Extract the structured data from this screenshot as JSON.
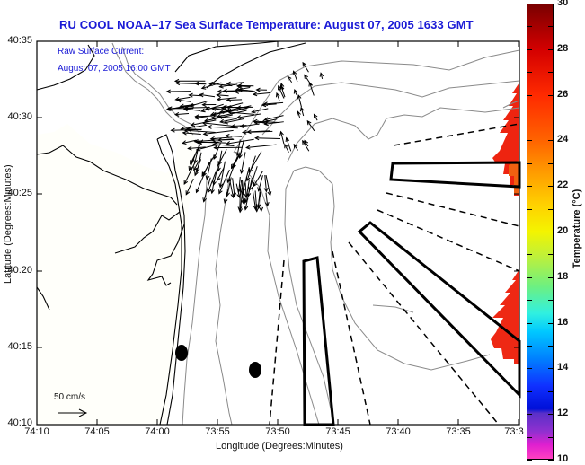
{
  "title": "RU COOL  NOAA–17  Sea Surface Temperature:  August 07, 2005 1633 GMT",
  "overlay": {
    "line1": "Raw Surface Current:",
    "line2": "August 07, 2005 16:00 GMT"
  },
  "scale_vector": {
    "label": "50 cm/s",
    "icon": "arrow-right-icon"
  },
  "axes": {
    "xlabel": "Longitude (Degrees:Minutes)",
    "ylabel": "Latitude (Degrees:Minutes)",
    "xticks": [
      "74:10",
      "74:05",
      "74:00",
      "73:55",
      "73:50",
      "73:45",
      "73:40",
      "73:35",
      "73:3"
    ],
    "yticks": [
      "40:35",
      "40:30",
      "40:25",
      "40:20",
      "40:15",
      "40:10"
    ]
  },
  "colorbar": {
    "label": "Temperature (°C)",
    "ticks": [
      "30",
      "28",
      "26",
      "24",
      "22",
      "20",
      "18",
      "16",
      "14",
      "12",
      "10"
    ],
    "range": [
      10,
      30
    ]
  },
  "features": {
    "markers": [
      {
        "name": "station-marker-1",
        "lon": "73:58.9",
        "lat": "40:14.6"
      },
      {
        "name": "station-marker-2",
        "lon": "73:52.3",
        "lat": "40:13.4"
      }
    ],
    "sst_patches": [
      {
        "region": "north-east edge",
        "temp_c": 26.5,
        "color": "#f02a10"
      },
      {
        "region": "south-east edge",
        "temp_c": 27,
        "color": "#f02810"
      }
    ]
  },
  "colors": {
    "title": "#1a1ad6",
    "overlay_text": "#1a1ad6",
    "coastline": "#000000",
    "bathymetry": "#8a8a8a",
    "land_fill": "#fffffa"
  }
}
